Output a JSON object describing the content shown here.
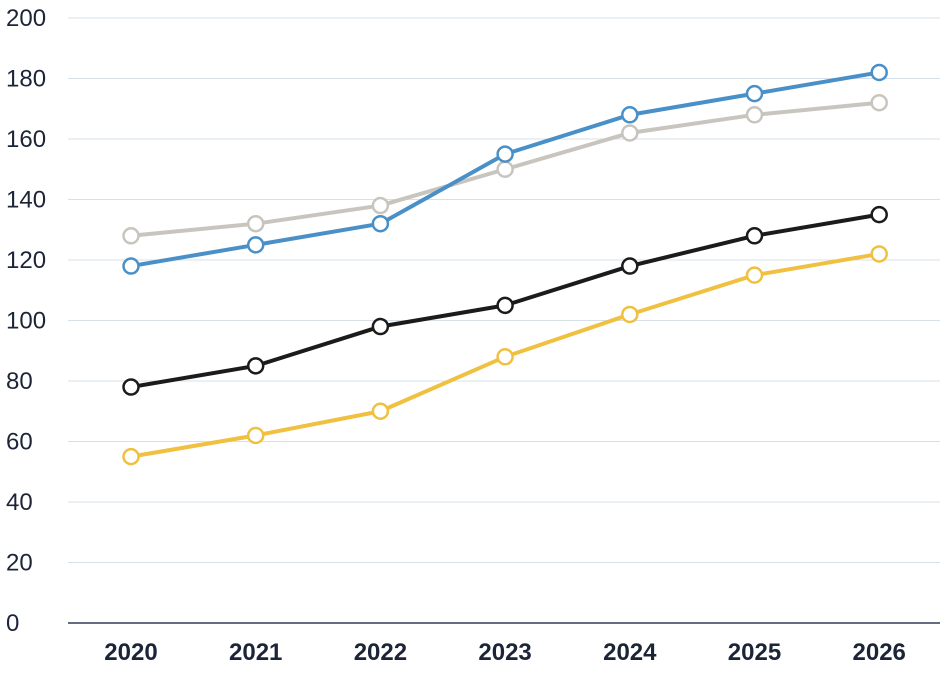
{
  "chart_data": {
    "type": "line",
    "categories": [
      "2020",
      "2021",
      "2022",
      "2023",
      "2024",
      "2025",
      "2026"
    ],
    "ylim": [
      0,
      200
    ],
    "yticks": [
      0,
      20,
      40,
      60,
      80,
      100,
      120,
      140,
      160,
      180,
      200
    ],
    "grid": true,
    "title": "",
    "xlabel": "",
    "ylabel": "",
    "series": [
      {
        "color": "#c8c5be",
        "values": [
          128,
          132,
          138,
          150,
          162,
          168,
          172
        ]
      },
      {
        "color": "#4a90c8",
        "values": [
          118,
          125,
          132,
          155,
          168,
          175,
          182
        ]
      },
      {
        "color": "#1b1b1b",
        "values": [
          78,
          85,
          98,
          105,
          118,
          128,
          135
        ]
      },
      {
        "color": "#f0c040",
        "values": [
          55,
          62,
          70,
          88,
          102,
          115,
          122
        ]
      }
    ]
  }
}
